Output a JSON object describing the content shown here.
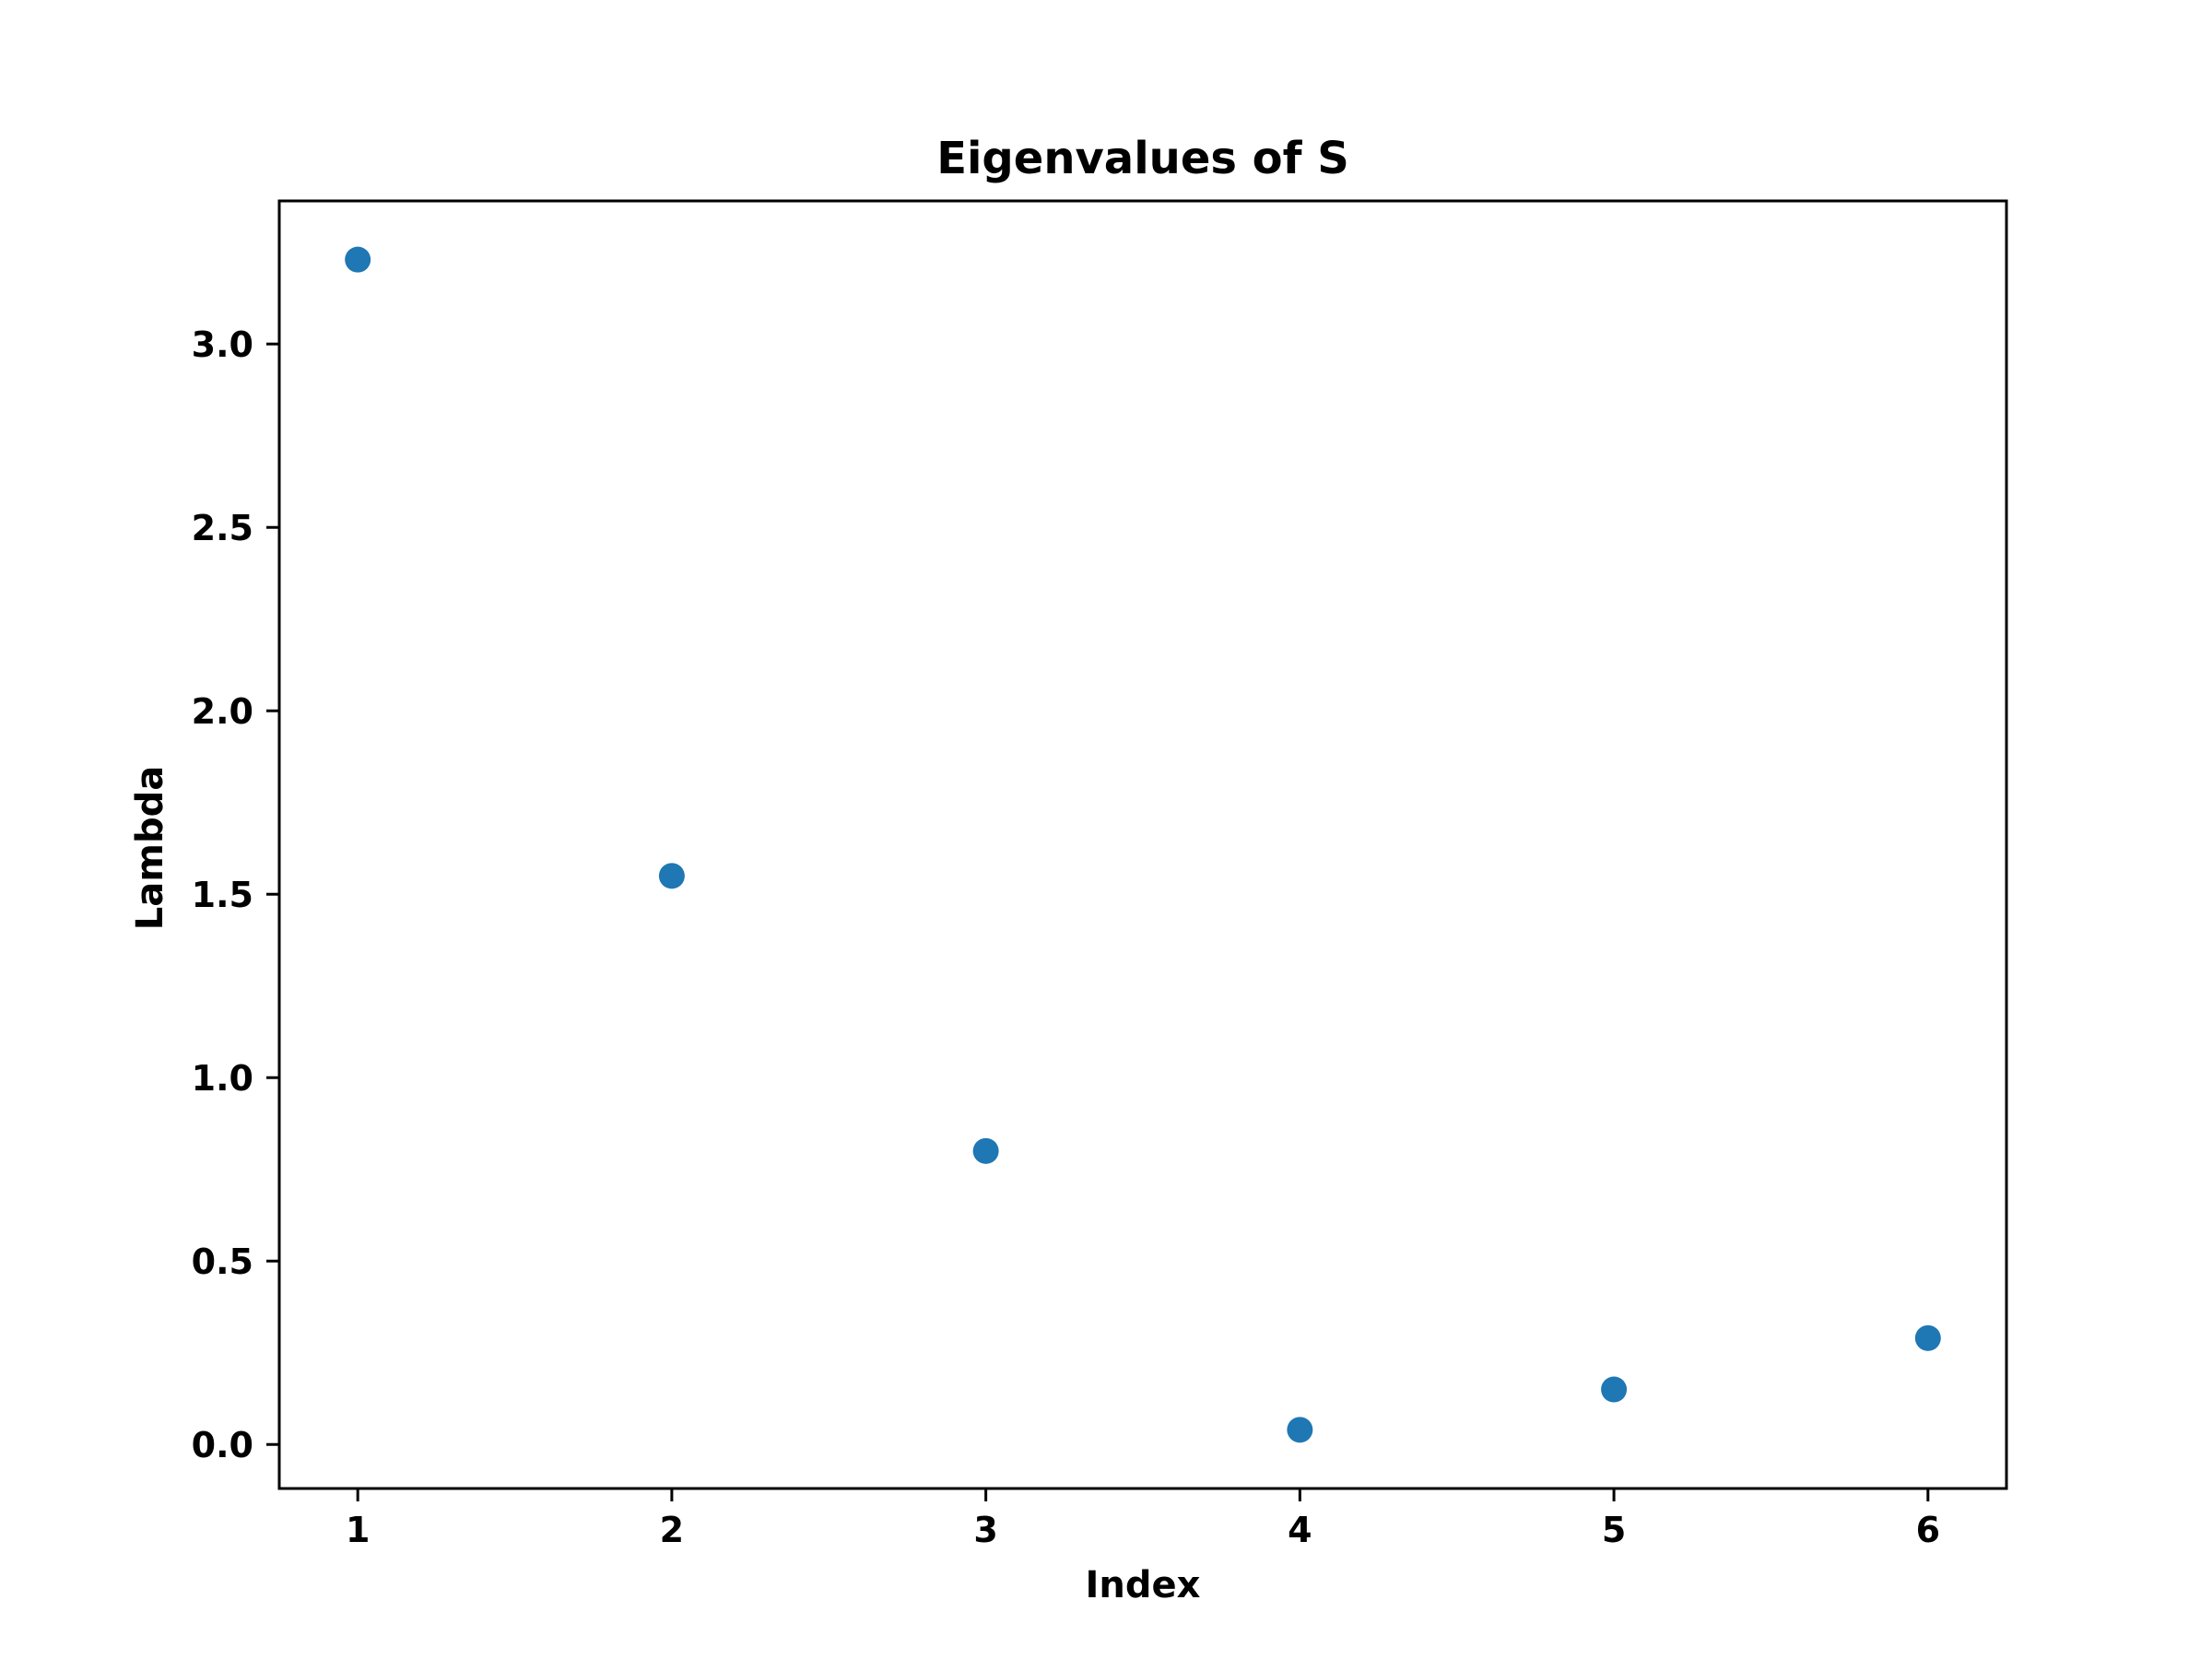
{
  "chart_data": {
    "type": "scatter",
    "title": "Eigenvalues of S",
    "xlabel": "Index",
    "ylabel": "Lambda",
    "x": [
      1,
      2,
      3,
      4,
      5,
      6
    ],
    "series": [
      {
        "values": [
          3.23,
          1.55,
          0.8,
          0.04,
          0.15,
          0.29
        ]
      }
    ],
    "xlim": [
      0.75,
      6.25
    ],
    "ylim": [
      -0.12,
      3.39
    ],
    "xticks": [
      1,
      2,
      3,
      4,
      5,
      6
    ],
    "xtick_labels": [
      "1",
      "2",
      "3",
      "4",
      "5",
      "6"
    ],
    "yticks": [
      0.0,
      0.5,
      1.0,
      1.5,
      2.0,
      2.5,
      3.0
    ],
    "ytick_labels": [
      "0.0",
      "0.5",
      "1.0",
      "1.5",
      "2.0",
      "2.5",
      "3.0"
    ],
    "grid": false,
    "marker_color": "#1f77b4"
  }
}
